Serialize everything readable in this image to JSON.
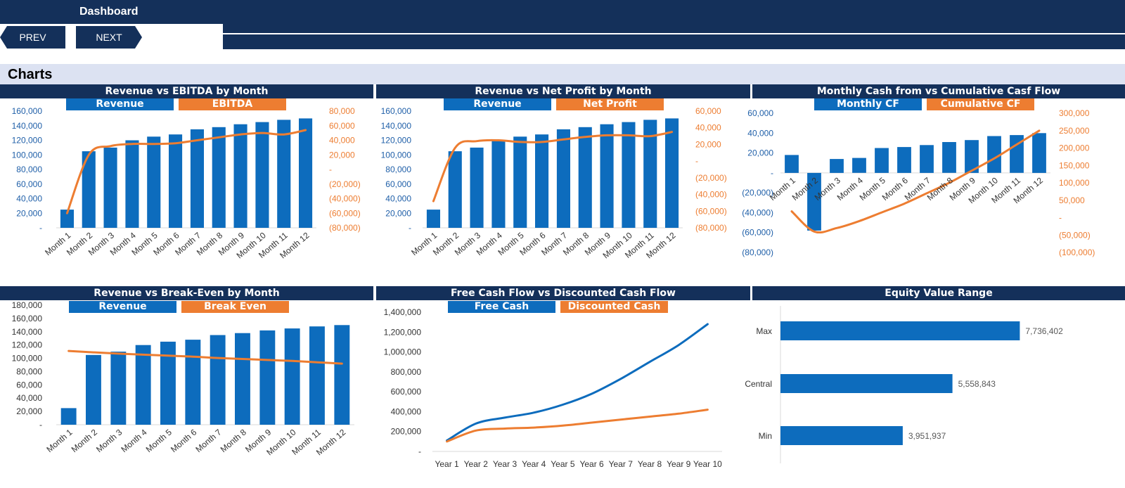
{
  "header": {
    "title": "Dashboard"
  },
  "nav": {
    "prev_label": "PREV",
    "next_label": "NEXT"
  },
  "section": {
    "title": "Charts"
  },
  "colors": {
    "navy": "#14305a",
    "blue": "#0d6cbd",
    "orange": "#ed7d31",
    "band": "#dce2f2"
  },
  "chart_data": [
    {
      "id": "rev-ebitda",
      "type": "bar",
      "title": "Revenue vs EBITDA by Month",
      "categories": [
        "Month 1",
        "Month 2",
        "Month 3",
        "Month 4",
        "Month 5",
        "Month 6",
        "Month 7",
        "Month 8",
        "Month 9",
        "Month 10",
        "Month 11",
        "Month 12"
      ],
      "legend": [
        "Revenue",
        "EBITDA"
      ],
      "series": [
        {
          "name": "Revenue",
          "kind": "bar",
          "axis": "left",
          "values": [
            25000,
            105000,
            110000,
            120000,
            125000,
            128000,
            135000,
            138000,
            142000,
            145000,
            148000,
            150000
          ]
        },
        {
          "name": "EBITDA",
          "kind": "line",
          "axis": "right",
          "values": [
            -60000,
            20000,
            32000,
            35000,
            35000,
            36000,
            40000,
            44000,
            48000,
            50000,
            48000,
            54000
          ]
        }
      ],
      "ylim": [
        0,
        160000
      ],
      "y_ticks": [
        "-",
        "20,000",
        "40,000",
        "60,000",
        "80,000",
        "100,000",
        "120,000",
        "140,000",
        "160,000"
      ],
      "y2lim": [
        -80000,
        80000
      ],
      "y2_ticks": [
        "(80,000)",
        "(60,000)",
        "(40,000)",
        "(20,000)",
        "-",
        "20,000",
        "40,000",
        "60,000",
        "80,000"
      ]
    },
    {
      "id": "rev-netprofit",
      "type": "bar",
      "title": "Revenue vs Net Profit by Month",
      "categories": [
        "Month 1",
        "Month 2",
        "Month 3",
        "Month 4",
        "Month 5",
        "Month 6",
        "Month 7",
        "Month 8",
        "Month 9",
        "Month 10",
        "Month 11",
        "Month 12"
      ],
      "legend": [
        "Revenue",
        "Net Profit"
      ],
      "series": [
        {
          "name": "Revenue",
          "kind": "bar",
          "axis": "left",
          "values": [
            25000,
            105000,
            110000,
            120000,
            125000,
            128000,
            135000,
            138000,
            142000,
            145000,
            148000,
            150000
          ]
        },
        {
          "name": "Net Profit",
          "kind": "line",
          "axis": "right",
          "values": [
            -48000,
            16000,
            24000,
            25000,
            23000,
            23000,
            26000,
            29000,
            31000,
            31000,
            30000,
            35000
          ]
        }
      ],
      "ylim": [
        0,
        160000
      ],
      "y_ticks": [
        "-",
        "20,000",
        "40,000",
        "60,000",
        "80,000",
        "100,000",
        "120,000",
        "140,000",
        "160,000"
      ],
      "y2lim": [
        -80000,
        60000
      ],
      "y2_ticks": [
        "(80,000)",
        "(60,000)",
        "(40,000)",
        "(20,000)",
        "-",
        "20,000",
        "40,000",
        "60,000"
      ]
    },
    {
      "id": "cashflow",
      "type": "bar",
      "title": "Monthly Cash from vs Cumulative Casf Flow",
      "categories": [
        "Month 1",
        "Month 2",
        "Month 3",
        "Month 4",
        "Month 5",
        "Month 6",
        "Month 7",
        "Month 8",
        "Month 9",
        "Month 10",
        "Month 11",
        "Month 12"
      ],
      "legend": [
        "Monthly CF",
        "Cumulative CF"
      ],
      "series": [
        {
          "name": "Monthly CF",
          "kind": "bar",
          "axis": "left",
          "values": [
            18000,
            -58000,
            14000,
            15000,
            25000,
            26000,
            28000,
            31000,
            33000,
            37000,
            38000,
            40000
          ]
        },
        {
          "name": "Cumulative CF",
          "kind": "line",
          "axis": "right",
          "values": [
            18000,
            -40000,
            -30000,
            -10000,
            15000,
            40000,
            70000,
            100000,
            135000,
            170000,
            210000,
            250000
          ]
        }
      ],
      "ylim": [
        -80000,
        60000
      ],
      "y_ticks": [
        "(80,000)",
        "(60,000)",
        "(40,000)",
        "(20,000)",
        "-",
        "20,000",
        "40,000",
        "60,000"
      ],
      "y2lim": [
        -100000,
        300000
      ],
      "y2_ticks": [
        "(100,000)",
        "(50,000)",
        "-",
        "50,000",
        "100,000",
        "150,000",
        "200,000",
        "250,000",
        "300,000"
      ]
    },
    {
      "id": "rev-breakeven",
      "type": "bar",
      "title": "Revenue vs Break-Even by Month",
      "categories": [
        "Month 1",
        "Month 2",
        "Month 3",
        "Month 4",
        "Month 5",
        "Month 6",
        "Month 7",
        "Month 8",
        "Month 9",
        "Month 10",
        "Month 11",
        "Month 12"
      ],
      "legend": [
        "Revenue",
        "Break Even"
      ],
      "series": [
        {
          "name": "Revenue",
          "kind": "bar",
          "axis": "left",
          "values": [
            25000,
            105000,
            110000,
            120000,
            125000,
            128000,
            135000,
            138000,
            142000,
            145000,
            148000,
            150000
          ]
        },
        {
          "name": "Break Even",
          "kind": "line",
          "axis": "left",
          "values": [
            111000,
            109000,
            107000,
            105500,
            104000,
            102500,
            100500,
            99000,
            97500,
            96000,
            94000,
            92000
          ]
        }
      ],
      "ylim": [
        0,
        180000
      ],
      "y_ticks": [
        "-",
        "20,000",
        "40,000",
        "60,000",
        "80,000",
        "100,000",
        "120,000",
        "140,000",
        "160,000",
        "180,000"
      ]
    },
    {
      "id": "fcf-dcf",
      "type": "line",
      "title": "Free Cash Flow vs Discounted Cash Flow",
      "categories": [
        "Year 1",
        "Year 2",
        "Year 3",
        "Year 4",
        "Year 5",
        "Year 6",
        "Year 7",
        "Year 8",
        "Year 9",
        "Year 10"
      ],
      "legend": [
        "Free Cash",
        "Discounted Cash"
      ],
      "series": [
        {
          "name": "Free Cash",
          "kind": "line",
          "axis": "left",
          "values": [
            110000,
            280000,
            340000,
            390000,
            470000,
            580000,
            730000,
            900000,
            1070000,
            1280000
          ]
        },
        {
          "name": "Discounted Cash",
          "kind": "line",
          "axis": "left",
          "values": [
            100000,
            210000,
            230000,
            240000,
            260000,
            290000,
            320000,
            350000,
            380000,
            420000
          ]
        }
      ],
      "ylim": [
        0,
        1400000
      ],
      "y_ticks": [
        "-",
        "200,000",
        "400,000",
        "600,000",
        "800,000",
        "1,000,000",
        "1,200,000",
        "1,400,000"
      ]
    },
    {
      "id": "equity",
      "type": "bar",
      "orientation": "horizontal",
      "title": "Equity Value Range",
      "categories": [
        "Max",
        "Central",
        "Min"
      ],
      "values": [
        7736402,
        5558843,
        3951937
      ],
      "value_labels": [
        "7,736,402",
        "5,558,843",
        "3,951,937"
      ],
      "xlim": [
        0,
        10000000
      ]
    }
  ]
}
